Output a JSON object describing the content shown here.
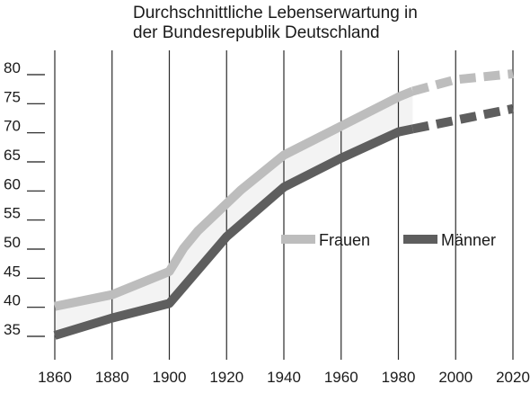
{
  "title": {
    "line1": "Durchschnittliche Lebenserwartung in",
    "line2": "der Bundesrepublik Deutschland"
  },
  "chart_data": {
    "type": "line",
    "title": "Durchschnittliche Lebenserwartung in der Bundesrepublik Deutschland",
    "xlabel": "",
    "ylabel": "",
    "xlim": [
      1850,
      2022
    ],
    "ylim": [
      30,
      85
    ],
    "x_ticks": [
      1860,
      1880,
      1900,
      1920,
      1940,
      1960,
      1980,
      2000,
      2020
    ],
    "y_ticks": [
      35,
      40,
      45,
      50,
      55,
      60,
      65,
      70,
      75,
      80
    ],
    "grid": "vertical",
    "legend_position": "right-middle",
    "projection_from": 1985,
    "series": [
      {
        "name": "Frauen",
        "color": "#bdbdbd",
        "x": [
          1860,
          1880,
          1900,
          1905,
          1910,
          1925,
          1940,
          1960,
          1980,
          1985,
          2000,
          2020
        ],
        "y": [
          40,
          42,
          46,
          50,
          53,
          60,
          66,
          71,
          76,
          77,
          79,
          80
        ]
      },
      {
        "name": "Männer",
        "color": "#5e5e5e",
        "x": [
          1860,
          1880,
          1900,
          1920,
          1940,
          1960,
          1980,
          1985,
          2000,
          2020
        ],
        "y": [
          35,
          38,
          40.5,
          52,
          60.5,
          65.5,
          70,
          70.5,
          72,
          74
        ]
      }
    ]
  }
}
